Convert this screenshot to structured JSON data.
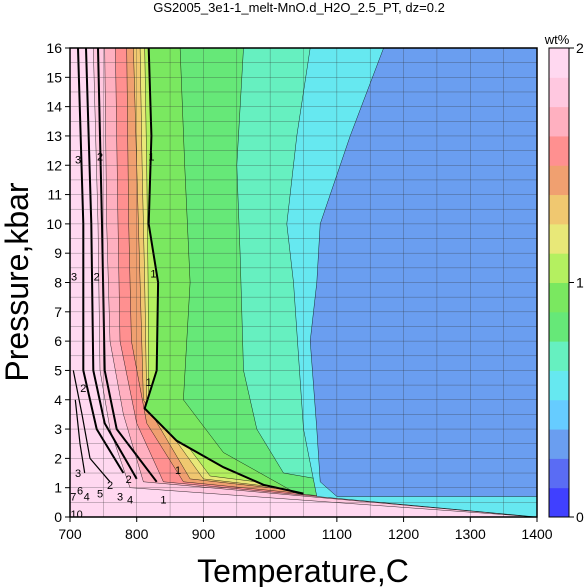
{
  "chart_data": {
    "type": "heatmap",
    "title": "GS2005_3e1-1_melt-MnO.d_H2O_2.5_PT, dz=0.2",
    "xlabel": "Temperature,C",
    "ylabel": "Pressure,kbar",
    "xlim": [
      700,
      1400
    ],
    "ylim": [
      0,
      16
    ],
    "x_ticks": [
      "700",
      "800",
      "900",
      "1000",
      "1100",
      "1200",
      "1300",
      "1400"
    ],
    "y_ticks": [
      "0",
      "1",
      "2",
      "3",
      "4",
      "5",
      "6",
      "7",
      "8",
      "9",
      "10",
      "11",
      "12",
      "13",
      "14",
      "15",
      "16"
    ],
    "grid": true,
    "colorbar": {
      "title": "wt%",
      "range": [
        0,
        2
      ],
      "step": 0.2,
      "tick_labels": [
        "0",
        "1",
        "2"
      ],
      "colors": [
        "#4040ff",
        "#5a6cf4",
        "#6a9ef0",
        "#66ccff",
        "#66e8f0",
        "#66f0c0",
        "#66e878",
        "#7ae860",
        "#b4f060",
        "#e8e878",
        "#f0c870",
        "#f0a070",
        "#ff9090",
        "#ffb0c0",
        "#ffc8e0",
        "#ffd8f0"
      ]
    },
    "contour_labels": [
      "1",
      "1",
      "1",
      "1",
      "2",
      "2",
      "2",
      "2",
      "3",
      "3",
      "3",
      "4",
      "5",
      "6",
      "7",
      "10",
      "4",
      "3",
      "2",
      "1"
    ],
    "region_boundaries": {
      "contour_1": [
        [
          818,
          16
        ],
        [
          822,
          13
        ],
        [
          818,
          10
        ],
        [
          832,
          8
        ],
        [
          830,
          5
        ],
        [
          812,
          3.7
        ],
        [
          860,
          2.6
        ],
        [
          930,
          1.7
        ],
        [
          990,
          1.1
        ],
        [
          1050,
          0.8
        ]
      ],
      "level_0_8": [
        [
          865,
          16
        ],
        [
          872,
          12
        ],
        [
          880,
          8
        ],
        [
          870,
          4
        ],
        [
          930,
          2.2
        ],
        [
          1040,
          0.8
        ]
      ],
      "level_0_6": [
        [
          960,
          16
        ],
        [
          950,
          12
        ],
        [
          955,
          9
        ],
        [
          960,
          5
        ],
        [
          980,
          3
        ],
        [
          1020,
          1.5
        ]
      ],
      "level_0_4": [
        [
          1060,
          16
        ],
        [
          1040,
          13
        ],
        [
          1025,
          10
        ],
        [
          1035,
          8
        ],
        [
          1050,
          3
        ],
        [
          1070,
          0.7
        ]
      ],
      "level_0_2": [
        [
          1170,
          16
        ],
        [
          1120,
          13
        ],
        [
          1075,
          10
        ],
        [
          1070,
          8
        ],
        [
          1060,
          6
        ],
        [
          1070,
          3
        ],
        [
          1075,
          1.2
        ],
        [
          1100,
          0.7
        ],
        [
          1400,
          0.7
        ]
      ]
    }
  }
}
